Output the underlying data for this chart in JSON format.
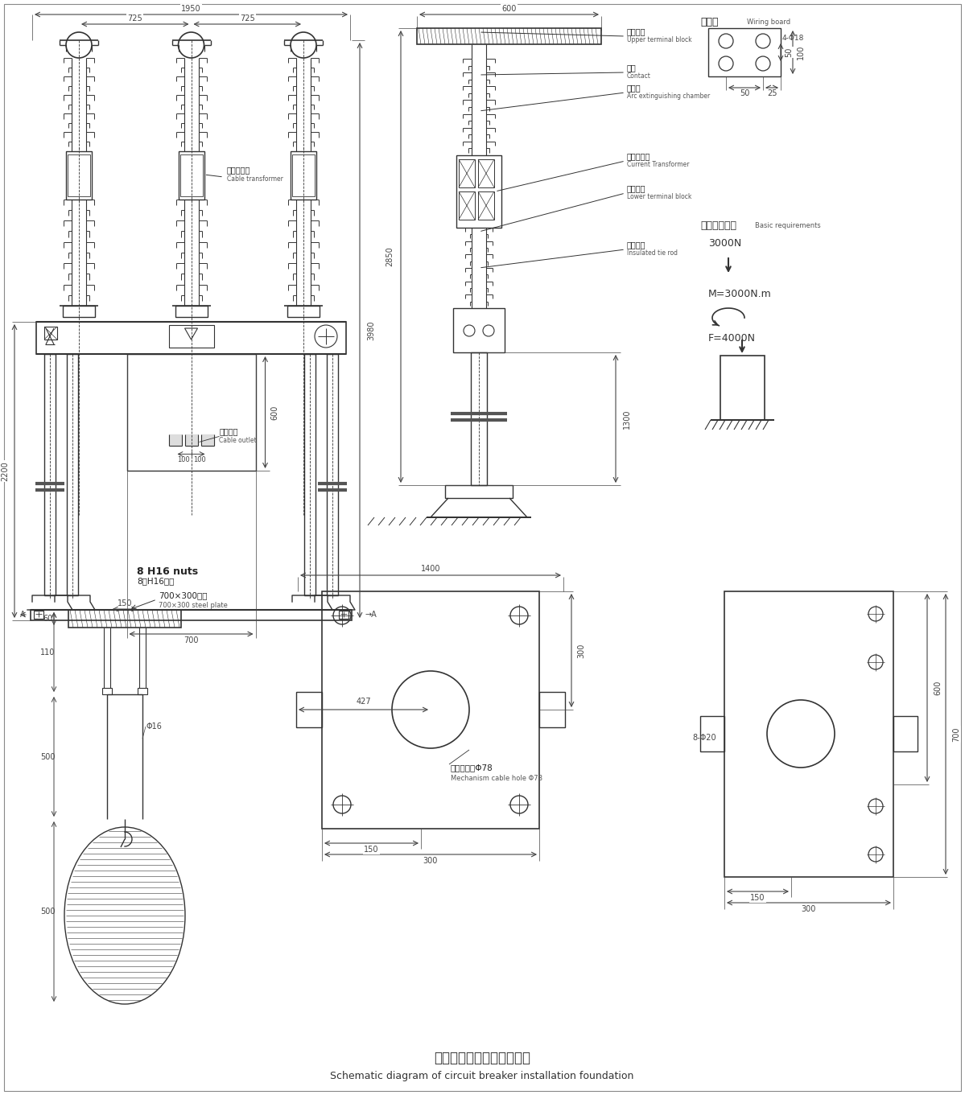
{
  "bg_color": "#ffffff",
  "line_color": "#333333",
  "dim_color": "#444444",
  "title_zh": "断路器安装地基尺寸示意图",
  "title_en": "Schematic diagram of circuit breaker installation foundation",
  "annotations": {
    "cable_transformer_zh": "电缆互感器",
    "cable_transformer_en": "Cable transformer",
    "cable_outlet_zh": "电缆出线",
    "cable_outlet_en": "Cable outlet",
    "upper_terminal_zh": "上接线板",
    "upper_terminal_en": "Upper terminal block",
    "contact_zh": "触头",
    "contact_en": "Contact",
    "arc_chamber_zh": "灭弧室",
    "arc_chamber_en": "Arc extinguishing chamber",
    "current_transformer_zh": "电流互感器",
    "current_transformer_en": "Current Transformer",
    "lower_terminal_zh": "下接线板",
    "lower_terminal_en": "Lower terminal block",
    "insulated_rod_zh": "绝缘拉杆",
    "insulated_rod_en": "Insulated tie rod",
    "wiring_board_zh": "接线板",
    "wiring_board_en": "Wiring board",
    "basic_req_zh": "对基础的要求",
    "basic_req_en": "Basic requirements",
    "nuts_zh": "8只H16螺母",
    "nuts_en": "8 H16 nuts",
    "steel_plate_zh": "700×300钢板",
    "steel_plate_en": "700×300 steel plate",
    "cable_hole_zh": "机构电缆孔Φ78",
    "cable_hole_en": "Mechanism cable hole Φ78",
    "force_3000": "3000N",
    "moment": "M=3000N.m",
    "force_4000": "F=4000N",
    "dim_8_phi20": "8-Φ20",
    "dim_4_phi18": "4-Φ18",
    "dim_phi16": "Φ16"
  },
  "dims": {
    "top_1950": "1950",
    "top_725_left": "725",
    "top_725_right": "725",
    "height_3980": "3980",
    "height_2200": "2200",
    "height_600_box": "600",
    "width_700": "700",
    "right_600": "600",
    "right_2850": "2850",
    "right_1300": "1300",
    "wiring_50": "50",
    "wiring_100": "100",
    "wiring_25": "25",
    "wiring_50b": "50",
    "bottom_1400": "1400",
    "bottom_427": "427",
    "bottom_300_w": "300",
    "bottom_150": "150",
    "bottom_600": "600",
    "bottom_700": "700",
    "left_60": "60",
    "left_110": "110",
    "left_500a": "500",
    "left_500b": "500",
    "left_150": "150"
  }
}
